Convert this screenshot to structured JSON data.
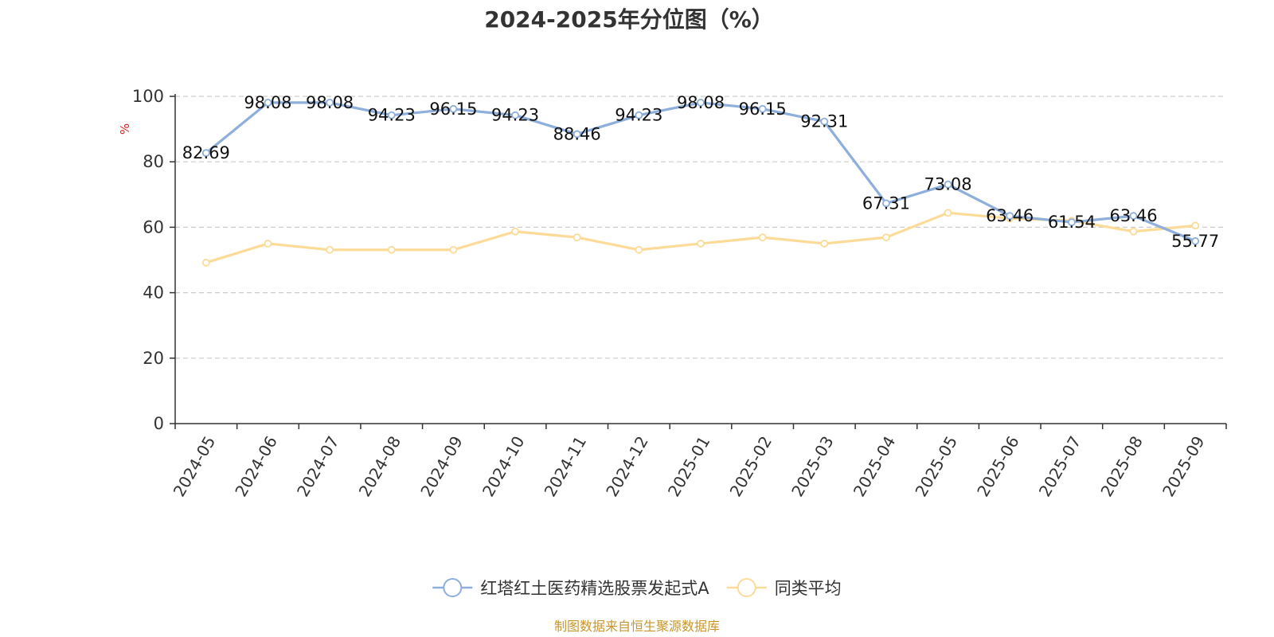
{
  "chart_data": {
    "type": "line",
    "title": "2024-2025年分位图（%）",
    "ylabel": "%",
    "ylim": [
      0,
      100
    ],
    "yticks": [
      0,
      20,
      40,
      60,
      80,
      100
    ],
    "grid": true,
    "legend_position": "bottom-center",
    "categories": [
      "2024-05",
      "2024-06",
      "2024-07",
      "2024-08",
      "2024-09",
      "2024-10",
      "2024-11",
      "2024-12",
      "2025-01",
      "2025-02",
      "2025-03",
      "2025-04",
      "2025-05",
      "2025-06",
      "2025-07",
      "2025-08",
      "2025-09"
    ],
    "series": [
      {
        "name": "红塔红土医药精选股票发起式A",
        "color": "#8eaedb",
        "show_labels": true,
        "values": [
          82.69,
          98.08,
          98.08,
          94.23,
          96.15,
          94.23,
          88.46,
          94.23,
          98.08,
          96.15,
          92.31,
          67.31,
          73.08,
          63.46,
          61.54,
          63.46,
          55.77
        ]
      },
      {
        "name": "同类平均",
        "color": "#fcdb98",
        "show_labels": false,
        "values": [
          49.2,
          55.0,
          53.1,
          53.1,
          53.1,
          58.7,
          56.9,
          53.1,
          55.0,
          56.9,
          55.0,
          56.9,
          64.4,
          62.7,
          62.0,
          58.7,
          60.5
        ]
      }
    ],
    "source": "制图数据来自恒生聚源数据库"
  },
  "colors": {
    "unit_label": "#e02020",
    "source_text": "#c8962c",
    "axis": "#333333",
    "grid": "#cccccc"
  }
}
